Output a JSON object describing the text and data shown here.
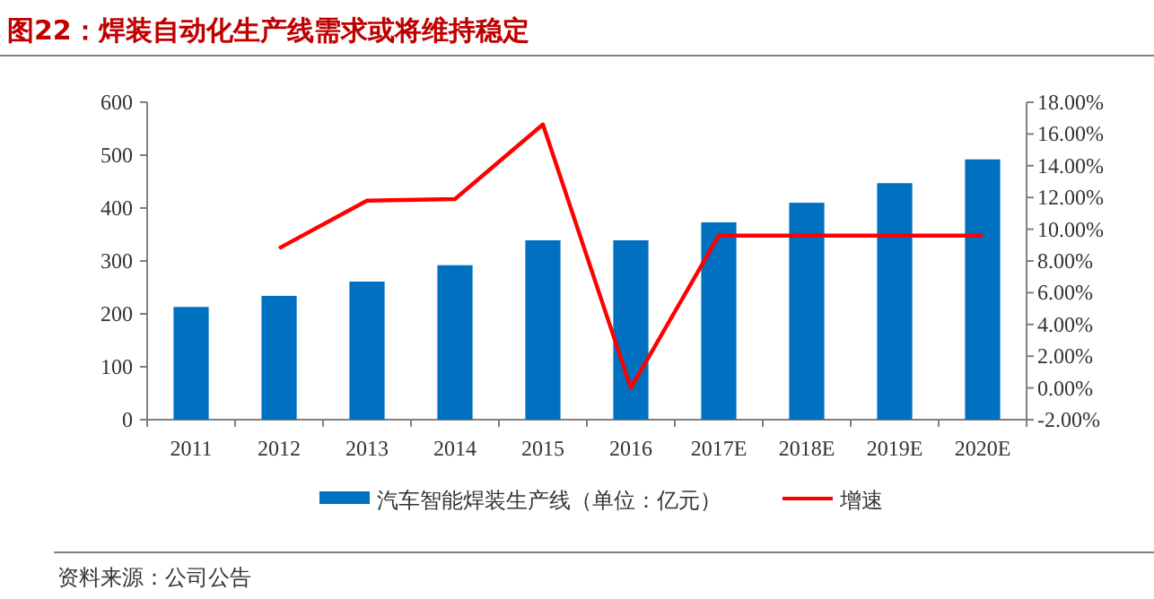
{
  "chart_data": {
    "type": "bar",
    "title": "图22：焊装自动化生产线需求或将维持稳定",
    "categories": [
      "2011",
      "2012",
      "2013",
      "2014",
      "2015",
      "2016",
      "2017E",
      "2018E",
      "2019E",
      "2020E"
    ],
    "series": [
      {
        "name": "汽车智能焊装生产线（单位：亿元）",
        "color": "#0070c0",
        "values": [
          213,
          234,
          261,
          292,
          339,
          339,
          373,
          410,
          447,
          492
        ]
      },
      {
        "name": "增速",
        "type": "line",
        "axis": "y2",
        "color": "#ff0000",
        "values": [
          null,
          8.8,
          11.8,
          11.9,
          16.6,
          0.0,
          9.6,
          9.6,
          9.6,
          9.6
        ]
      }
    ],
    "ylim": [
      0,
      600
    ],
    "yticks": [
      0,
      100,
      200,
      300,
      400,
      500,
      600
    ],
    "y2lim": [
      -2,
      18
    ],
    "y2ticks": [
      {
        "value": -2,
        "label": "-2.00%"
      },
      {
        "value": 0,
        "label": "0.00%"
      },
      {
        "value": 2,
        "label": "2.00%"
      },
      {
        "value": 4,
        "label": "4.00%"
      },
      {
        "value": 6,
        "label": "6.00%"
      },
      {
        "value": 8,
        "label": "8.00%"
      },
      {
        "value": 10,
        "label": "10.00%"
      },
      {
        "value": 12,
        "label": "12.00%"
      },
      {
        "value": 14,
        "label": "14.00%"
      },
      {
        "value": 16,
        "label": "16.00%"
      },
      {
        "value": 18,
        "label": "18.00%"
      }
    ],
    "legend": "bottom",
    "annotations": [
      "资料来源：公司公告"
    ]
  }
}
